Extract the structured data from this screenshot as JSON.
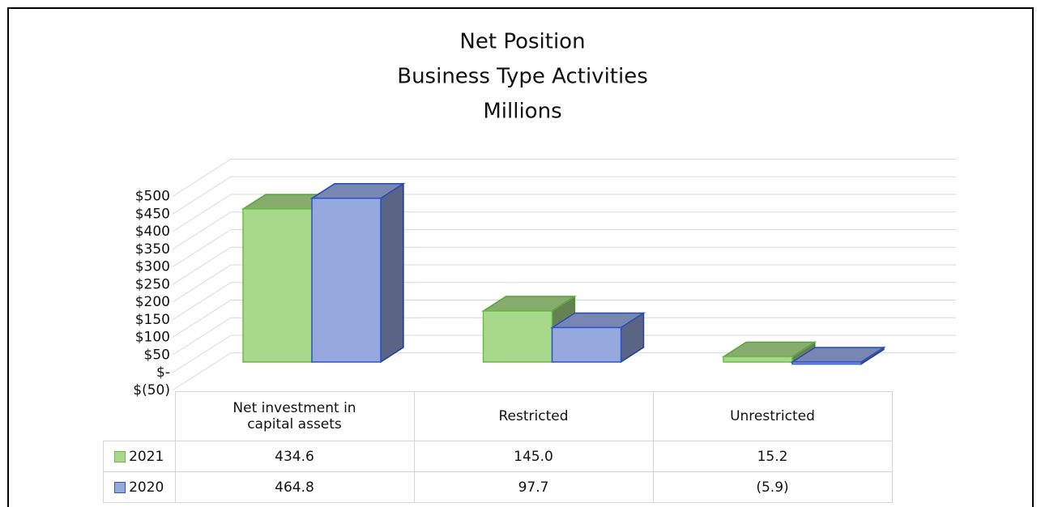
{
  "chart_data": {
    "type": "bar3d",
    "title": [
      "Net Position",
      "Business Type Activities",
      "Millions"
    ],
    "categories": [
      "Net investment in capital assets",
      "Restricted",
      "Unrestricted"
    ],
    "series": [
      {
        "name": "2021",
        "color": "#a8d88a",
        "edge": "#6cbb48",
        "values": [
          434.6,
          145.0,
          15.2
        ],
        "value_labels": [
          "434.6",
          "145.0",
          "15.2"
        ]
      },
      {
        "name": "2020",
        "color": "#96a9de",
        "edge": "#2f55c9",
        "values": [
          464.8,
          97.7,
          -5.9
        ],
        "value_labels": [
          "464.8",
          "97.7",
          "(5.9)"
        ]
      }
    ],
    "ylim": [
      -50,
      500
    ],
    "yticks": [
      {
        "value": -50,
        "label": "$(50)"
      },
      {
        "value": 0,
        "label": "$-"
      },
      {
        "value": 50,
        "label": "$50"
      },
      {
        "value": 100,
        "label": "$100"
      },
      {
        "value": 150,
        "label": "$150"
      },
      {
        "value": 200,
        "label": "$200"
      },
      {
        "value": 250,
        "label": "$250"
      },
      {
        "value": 300,
        "label": "$300"
      },
      {
        "value": 350,
        "label": "$350"
      },
      {
        "value": 400,
        "label": "$400"
      },
      {
        "value": 450,
        "label": "$450"
      },
      {
        "value": 500,
        "label": "$500"
      }
    ],
    "grid": true
  }
}
